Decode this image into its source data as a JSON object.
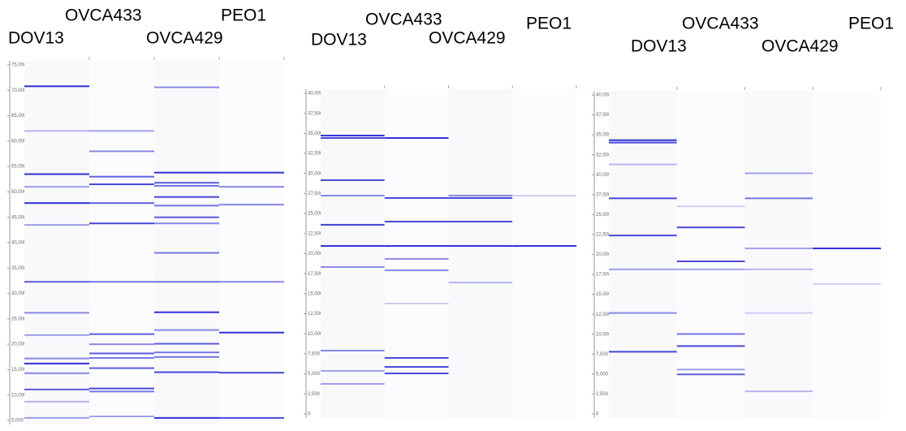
{
  "chart_data": [
    {
      "type": "gel",
      "color": "#1a1ad0",
      "ylim": [
        5000,
        75000
      ],
      "yticks": [
        {
          "value": 5000,
          "label": "5,000"
        },
        {
          "value": 10000,
          "label": "10,000"
        },
        {
          "value": 15000,
          "label": "15,000"
        },
        {
          "value": 20000,
          "label": "20,000"
        },
        {
          "value": 25000,
          "label": "25,000"
        },
        {
          "value": 30000,
          "label": "30,000"
        },
        {
          "value": 35000,
          "label": "35,000"
        },
        {
          "value": 40000,
          "label": "40,000"
        },
        {
          "value": 45000,
          "label": "45,000"
        },
        {
          "value": 50000,
          "label": "50,000"
        },
        {
          "value": 55000,
          "label": "55,000"
        },
        {
          "value": 60000,
          "label": "60,000"
        },
        {
          "value": 65000,
          "label": "65,000"
        },
        {
          "value": 70000,
          "label": "70,000"
        },
        {
          "value": 75000,
          "label": "75,000"
        }
      ],
      "series": [
        {
          "name": "DOV13",
          "values": [
            70800,
            62000,
            53500,
            51000,
            47800,
            43500,
            32300,
            26200,
            21800,
            17200,
            16200,
            14300,
            11100,
            8700,
            5500
          ],
          "strengths": [
            0.9,
            0.3,
            0.9,
            0.4,
            0.9,
            0.4,
            0.7,
            0.5,
            0.4,
            0.5,
            0.9,
            0.5,
            0.7,
            0.3,
            0.4
          ]
        },
        {
          "name": "OVCA433",
          "values": [
            62000,
            58000,
            53000,
            51500,
            47800,
            43800,
            32300,
            22000,
            20000,
            18200,
            17300,
            15300,
            11300,
            10700,
            5800
          ],
          "strengths": [
            0.4,
            0.5,
            0.7,
            0.8,
            0.7,
            0.8,
            0.6,
            0.7,
            0.5,
            0.7,
            0.6,
            0.7,
            0.8,
            0.6,
            0.4
          ]
        },
        {
          "name": "OVCA429",
          "values": [
            70600,
            53800,
            51800,
            51200,
            49000,
            47300,
            45000,
            43800,
            38000,
            32300,
            26300,
            22800,
            20100,
            18400,
            17500,
            14500,
            5500
          ],
          "strengths": [
            0.5,
            0.9,
            0.7,
            0.6,
            0.8,
            0.6,
            0.7,
            0.5,
            0.6,
            0.6,
            0.9,
            0.5,
            0.7,
            0.6,
            0.6,
            0.8,
            0.9
          ]
        },
        {
          "name": "PEO1",
          "values": [
            53800,
            51000,
            47500,
            32300,
            22300,
            14400,
            5500
          ],
          "strengths": [
            0.9,
            0.5,
            0.5,
            0.5,
            0.9,
            0.8,
            0.8
          ]
        }
      ]
    },
    {
      "type": "gel",
      "color": "#1a1ad0",
      "ylim": [
        0,
        40000
      ],
      "yticks": [
        0,
        {
          "value": 2500,
          "label": "2,500"
        },
        {
          "value": 5000,
          "label": "5,000"
        },
        {
          "value": 7500,
          "label": "7,500"
        },
        {
          "value": 10000,
          "label": "10,000"
        },
        {
          "value": 12500,
          "label": "12,500"
        },
        {
          "value": 15000,
          "label": "15,000"
        },
        {
          "value": 17500,
          "label": "17,500"
        },
        {
          "value": 20000,
          "label": "20,000"
        },
        {
          "value": 22500,
          "label": "22,500"
        },
        {
          "value": 25000,
          "label": "25,000"
        },
        {
          "value": 27500,
          "label": "27,500"
        },
        {
          "value": 30000,
          "label": "30,000"
        },
        {
          "value": 32500,
          "label": "32,500"
        },
        {
          "value": 35000,
          "label": "35,000"
        },
        {
          "value": 37500,
          "label": "37,500"
        },
        {
          "value": 40000,
          "label": "40,000"
        }
      ],
      "series": [
        {
          "name": "DOV13",
          "values": [
            34730,
            34430,
            29170,
            27240,
            23600,
            20960,
            18330,
            7900,
            5370,
            3750
          ],
          "strengths": [
            0.9,
            0.8,
            0.8,
            0.5,
            0.8,
            0.9,
            0.5,
            0.5,
            0.4,
            0.4
          ]
        },
        {
          "name": "OVCA433",
          "values": [
            34430,
            26940,
            24000,
            20960,
            19340,
            17920,
            13770,
            6990,
            5870,
            5060
          ],
          "strengths": [
            0.9,
            0.8,
            0.8,
            0.9,
            0.5,
            0.5,
            0.2,
            0.8,
            0.8,
            0.8
          ]
        },
        {
          "name": "OVCA429",
          "values": [
            27240,
            26940,
            24000,
            20960,
            16400
          ],
          "strengths": [
            0.5,
            0.8,
            0.8,
            0.9,
            0.3
          ]
        },
        {
          "name": "PEO1",
          "values": [
            27240,
            20960
          ],
          "strengths": [
            0.2,
            0.9
          ]
        }
      ]
    },
    {
      "type": "gel",
      "color": "#1a1ad0",
      "ylim": [
        0,
        40000
      ],
      "yticks": [
        0,
        {
          "value": 2500,
          "label": "2,500"
        },
        {
          "value": 5000,
          "label": "5,000"
        },
        {
          "value": 7500,
          "label": "7,500"
        },
        {
          "value": 10000,
          "label": "10,000"
        },
        {
          "value": 12500,
          "label": "12,500"
        },
        {
          "value": 15000,
          "label": "15,000"
        },
        {
          "value": 17500,
          "label": "17,500"
        },
        {
          "value": 20000,
          "label": "20,000"
        },
        {
          "value": 22500,
          "label": "22,500"
        },
        {
          "value": 25000,
          "label": "25,000"
        },
        {
          "value": 27500,
          "label": "27,500"
        },
        {
          "value": 30000,
          "label": "30,000"
        },
        {
          "value": 32500,
          "label": "32,500"
        },
        {
          "value": 35000,
          "label": "35,000"
        },
        {
          "value": 37500,
          "label": "37,500"
        },
        {
          "value": 40000,
          "label": "40,000"
        }
      ],
      "series": [
        {
          "name": "DOV13",
          "values": [
            34330,
            34030,
            31290,
            27040,
            22380,
            18130,
            12660,
            7800
          ],
          "strengths": [
            0.9,
            0.8,
            0.3,
            0.8,
            0.8,
            0.4,
            0.5,
            0.8
          ]
        },
        {
          "name": "OVCA433",
          "values": [
            26030,
            23390,
            19140,
            18130,
            10030,
            8510,
            5570,
            4960
          ],
          "strengths": [
            0.2,
            0.8,
            0.8,
            0.4,
            0.6,
            0.8,
            0.4,
            0.7
          ]
        },
        {
          "name": "OVCA429",
          "values": [
            30180,
            27040,
            20760,
            18130,
            12660,
            2840
          ],
          "strengths": [
            0.4,
            0.6,
            0.4,
            0.3,
            0.2,
            0.3
          ]
        },
        {
          "name": "PEO1",
          "values": [
            20760,
            16300
          ],
          "strengths": [
            0.9,
            0.2
          ]
        }
      ]
    }
  ]
}
